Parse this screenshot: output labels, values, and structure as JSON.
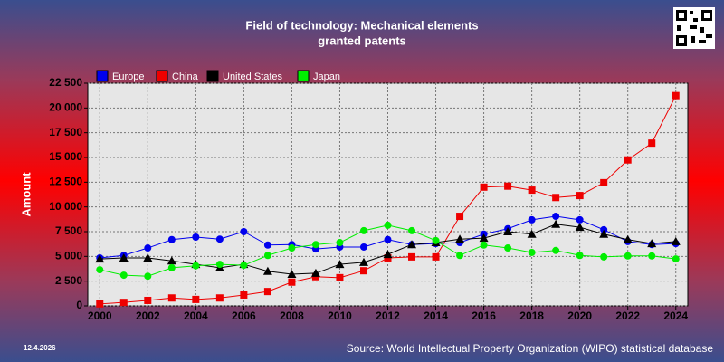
{
  "chart_data": {
    "type": "line",
    "title": "Field of technology: Mechanical elements",
    "subtitle": "granted patents",
    "y_label": "Amount",
    "date": "12.4.2026",
    "source": "Source: World Intellectual Property Organization (WIPO) statistical database",
    "x": [
      2000,
      2001,
      2002,
      2003,
      2004,
      2005,
      2006,
      2007,
      2008,
      2009,
      2010,
      2011,
      2012,
      2013,
      2014,
      2015,
      2016,
      2017,
      2018,
      2019,
      2020,
      2021,
      2022,
      2023,
      2024
    ],
    "xlim": [
      1999.5,
      2024.5
    ],
    "xticks": [
      2000,
      2002,
      2004,
      2006,
      2008,
      2010,
      2012,
      2014,
      2016,
      2018,
      2020,
      2022,
      2024
    ],
    "ylim": [
      0,
      22500
    ],
    "yticks": [
      0,
      {
        "value": 2500,
        "label": "2 500"
      },
      {
        "value": 5000,
        "label": "5 000"
      },
      {
        "value": 7500,
        "label": "7 500"
      },
      {
        "value": 10000,
        "label": "10 000"
      },
      {
        "value": 12500,
        "label": "12 500"
      },
      {
        "value": 15000,
        "label": "15 000"
      },
      {
        "value": 17500,
        "label": "17 500"
      },
      {
        "value": 20000,
        "label": "20 000"
      },
      {
        "value": 22500,
        "label": "22 500"
      }
    ],
    "grid": true,
    "series": [
      {
        "name": "Europe",
        "color": "#0000ee",
        "marker": "circle",
        "values": [
          4850,
          5100,
          5850,
          6700,
          6950,
          6750,
          7500,
          6150,
          6200,
          5750,
          5950,
          5950,
          6700,
          6200,
          6300,
          6400,
          7250,
          7800,
          8700,
          9050,
          8700,
          7700,
          6500,
          6200,
          6300
        ]
      },
      {
        "name": "China",
        "color": "#ee0000",
        "marker": "square",
        "values": [
          200,
          350,
          550,
          800,
          650,
          800,
          1100,
          1450,
          2400,
          2950,
          2850,
          3550,
          4850,
          4950,
          4950,
          9050,
          12000,
          12100,
          11700,
          10950,
          11150,
          12450,
          14750,
          16450,
          21250
        ]
      },
      {
        "name": "United States",
        "color": "#000000",
        "marker": "triangle",
        "values": [
          4750,
          4850,
          4850,
          4550,
          4200,
          3850,
          4200,
          3500,
          3200,
          3300,
          4200,
          4400,
          5200,
          6200,
          6400,
          6750,
          6850,
          7500,
          7250,
          8250,
          7950,
          7250,
          6700,
          6300,
          6500
        ]
      },
      {
        "name": "Japan",
        "color": "#00ee00",
        "marker": "circle",
        "values": [
          3650,
          3100,
          3000,
          3850,
          4050,
          4200,
          4100,
          5100,
          5850,
          6200,
          6400,
          7600,
          8150,
          7600,
          6600,
          5100,
          6150,
          5850,
          5400,
          5600,
          5100,
          4950,
          5050,
          5050,
          4750
        ]
      }
    ]
  }
}
